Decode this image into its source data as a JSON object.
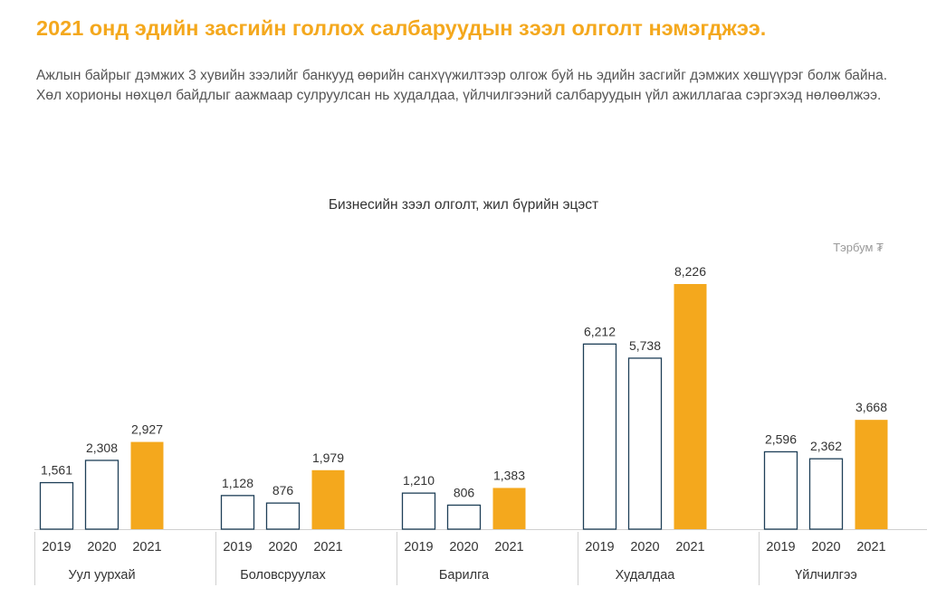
{
  "headline": "2021 онд эдийн засгийн голлох салбаруудын зээл олголт нэмэгджээ.",
  "description": "Ажлын байрыг дэмжих 3 хувийн зээлийг банкууд өөрийн санхүүжилтээр олгож буй нь эдийн засгийг дэмжих хөшүүрэг болж байна. Хөл хорионы нөхцөл байдлыг аажмаар сулруулсан нь худалдаа, үйлчилгээний салбаруудын үйл ажиллагаа сэргэхэд нөлөөлжээ.",
  "colors": {
    "accent": "#f4a81d",
    "outline_bar": "#1e3f57",
    "axis": "#d0d0d0"
  },
  "chart_data": {
    "type": "bar",
    "title": "Бизнесийн зээл олголт, жил бүрийн эцэст",
    "unit_label": "Тэрбум ₮",
    "years": [
      "2019",
      "2020",
      "2021"
    ],
    "highlight_year": "2021",
    "ylim": [
      0,
      8226
    ],
    "groups": [
      {
        "name": "Уул уурхай",
        "values": [
          1561,
          2308,
          2927
        ],
        "labels": [
          "1,561",
          "2,308",
          "2,927"
        ]
      },
      {
        "name": "Боловсруулах",
        "values": [
          1128,
          876,
          1979
        ],
        "labels": [
          "1,128",
          "876",
          "1,979"
        ]
      },
      {
        "name": "Барилга",
        "values": [
          1210,
          806,
          1383
        ],
        "labels": [
          "1,210",
          "806",
          "1,383"
        ]
      },
      {
        "name": "Худалдаа",
        "values": [
          6212,
          5738,
          8226
        ],
        "labels": [
          "6,212",
          "5,738",
          "8,226"
        ]
      },
      {
        "name": "Үйлчилгээ",
        "values": [
          2596,
          2362,
          3668
        ],
        "labels": [
          "2,596",
          "2,362",
          "3,668"
        ]
      }
    ]
  }
}
